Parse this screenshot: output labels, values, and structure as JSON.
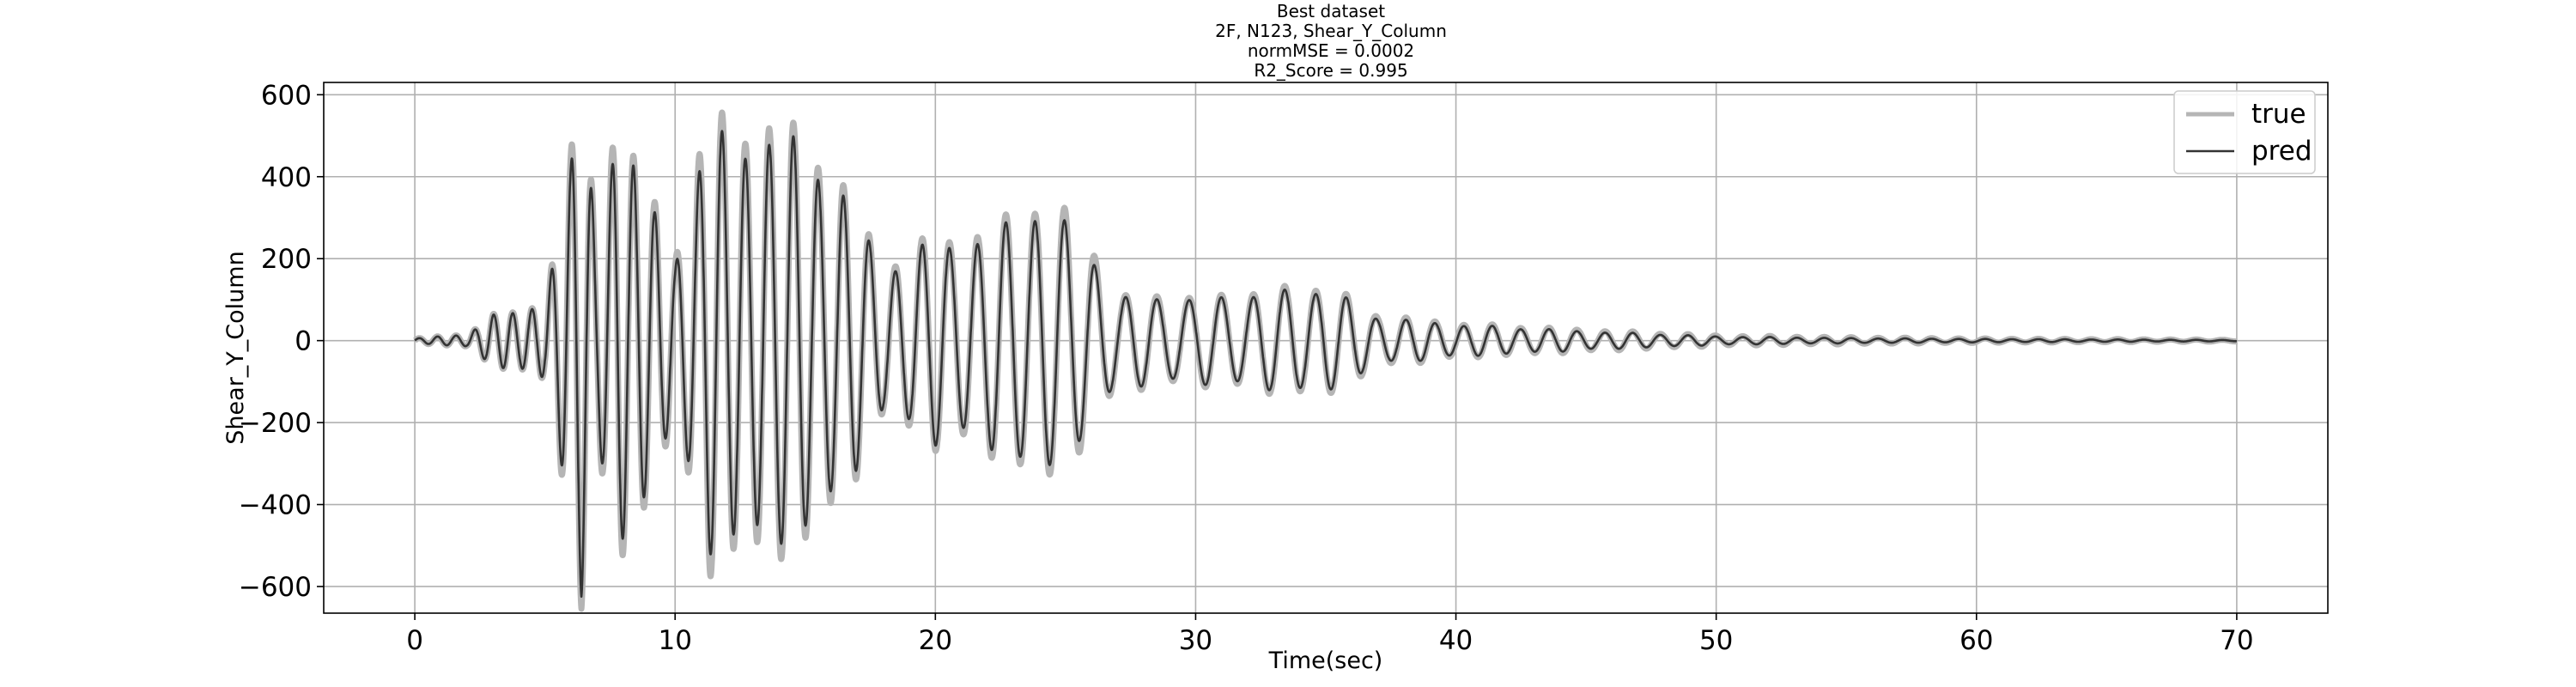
{
  "chart_data": {
    "type": "line",
    "title_lines": [
      "Best dataset",
      "2F, N123, Shear_Y_Column",
      "normMSE = 0.0002",
      "R2_Score = 0.995"
    ],
    "xlabel": "Time(sec)",
    "ylabel": "Shear_Y_Column",
    "xlim": [
      -3.5,
      73.5
    ],
    "ylim": [
      -665,
      630
    ],
    "xticks": [
      0,
      10,
      20,
      30,
      40,
      50,
      60,
      70
    ],
    "yticks": [
      600,
      400,
      200,
      0,
      -200,
      -400,
      -600
    ],
    "ytick_labels": [
      "600",
      "400",
      "200",
      "0",
      "−200",
      "−400",
      "−600"
    ],
    "grid": true,
    "legend_position": "top-right",
    "x_range": [
      0,
      70
    ],
    "series": [
      {
        "name": "true",
        "color": "#b5b5b5",
        "envelope": [
          [
            0,
            5
          ],
          [
            2,
            15
          ],
          [
            3,
            60
          ],
          [
            4,
            65
          ],
          [
            5,
            100
          ],
          [
            6,
            420
          ],
          [
            6.4,
            600
          ],
          [
            7,
            260
          ],
          [
            7.8,
            575
          ],
          [
            8.3,
            430
          ],
          [
            9.3,
            305
          ],
          [
            10,
            210
          ],
          [
            11.3,
            520
          ],
          [
            12.3,
            500
          ],
          [
            13.1,
            510
          ],
          [
            14.1,
            480
          ],
          [
            14.8,
            495
          ],
          [
            15.7,
            430
          ],
          [
            17,
            300
          ],
          [
            18,
            180
          ],
          [
            19,
            200
          ],
          [
            20,
            250
          ],
          [
            21,
            240
          ],
          [
            22,
            250
          ],
          [
            23,
            300
          ],
          [
            24,
            330
          ],
          [
            25,
            290
          ],
          [
            26,
            230
          ],
          [
            27,
            100
          ],
          [
            28,
            110
          ],
          [
            30,
            100
          ],
          [
            33,
            120
          ],
          [
            35,
            130
          ],
          [
            37,
            60
          ],
          [
            40,
            40
          ],
          [
            45,
            25
          ],
          [
            50,
            12
          ],
          [
            55,
            8
          ],
          [
            60,
            5
          ],
          [
            70,
            2
          ]
        ],
        "period_points": [
          [
            0,
            0.7
          ],
          [
            5,
            0.75
          ],
          [
            10,
            0.85
          ],
          [
            20,
            1.05
          ],
          [
            30,
            1.25
          ],
          [
            40,
            1.1
          ],
          [
            50,
            1.05
          ],
          [
            70,
            1.0
          ]
        ],
        "amp_scale": 1.03
      },
      {
        "name": "pred",
        "color": "#333333",
        "envelope": [
          [
            0,
            5
          ],
          [
            2,
            15
          ],
          [
            3,
            60
          ],
          [
            4,
            65
          ],
          [
            5,
            100
          ],
          [
            6,
            400
          ],
          [
            6.4,
            590
          ],
          [
            7,
            250
          ],
          [
            7.8,
            540
          ],
          [
            8.3,
            420
          ],
          [
            9.3,
            290
          ],
          [
            10,
            200
          ],
          [
            11.3,
            485
          ],
          [
            12.3,
            480
          ],
          [
            13.1,
            480
          ],
          [
            14.1,
            460
          ],
          [
            14.8,
            480
          ],
          [
            15.7,
            410
          ],
          [
            17,
            290
          ],
          [
            18,
            175
          ],
          [
            19,
            190
          ],
          [
            20,
            245
          ],
          [
            21,
            230
          ],
          [
            22,
            240
          ],
          [
            23,
            290
          ],
          [
            24,
            320
          ],
          [
            25,
            270
          ],
          [
            26,
            210
          ],
          [
            27,
            100
          ],
          [
            28,
            105
          ],
          [
            30,
            98
          ],
          [
            33,
            115
          ],
          [
            35,
            125
          ],
          [
            37,
            55
          ],
          [
            40,
            38
          ],
          [
            45,
            22
          ],
          [
            50,
            10
          ],
          [
            55,
            6
          ],
          [
            60,
            4
          ],
          [
            70,
            1.5
          ]
        ],
        "period_points": [
          [
            0,
            0.7
          ],
          [
            5,
            0.75
          ],
          [
            10,
            0.85
          ],
          [
            20,
            1.05
          ],
          [
            30,
            1.25
          ],
          [
            40,
            1.1
          ],
          [
            50,
            1.05
          ],
          [
            70,
            1.0
          ]
        ],
        "amp_scale": 1.0
      }
    ]
  }
}
